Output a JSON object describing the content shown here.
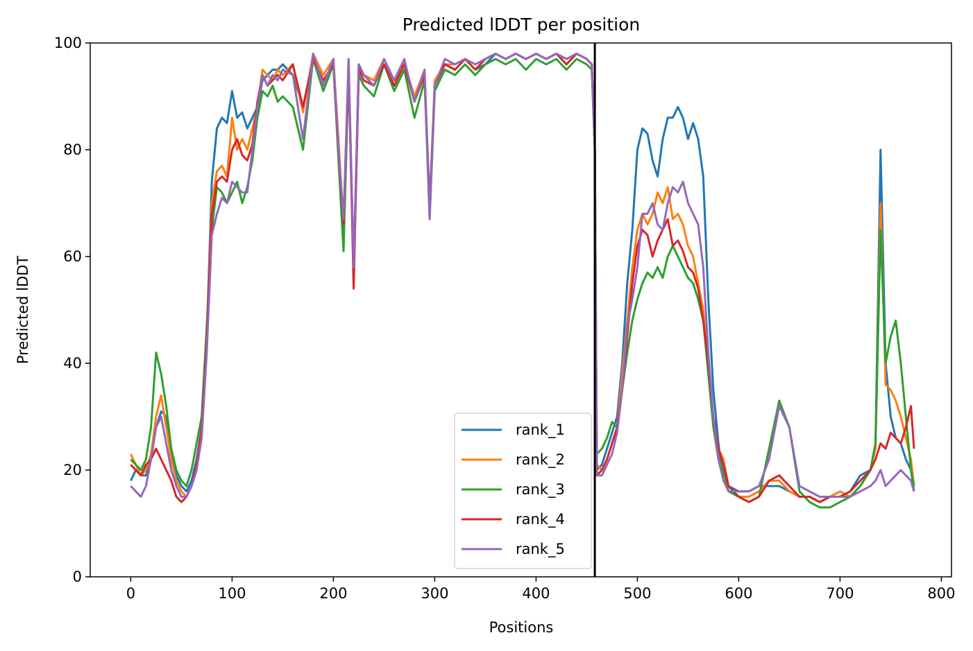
{
  "chart_data": {
    "type": "line",
    "title": "Predicted lDDT per position",
    "xlabel": "Positions",
    "ylabel": "Predicted lDDT",
    "xlim": [
      -40,
      810
    ],
    "ylim": [
      0,
      100
    ],
    "xticks": [
      0,
      100,
      200,
      300,
      400,
      500,
      600,
      700,
      800
    ],
    "yticks": [
      0,
      20,
      40,
      60,
      80,
      100
    ],
    "grid": false,
    "legend_position": "lower-center",
    "chain_boundary_x": 458,
    "series": [
      {
        "name": "rank_1",
        "color": "#1f77b4",
        "x": [
          0,
          5,
          10,
          15,
          20,
          25,
          30,
          35,
          40,
          45,
          50,
          55,
          60,
          65,
          70,
          75,
          80,
          85,
          90,
          95,
          100,
          105,
          110,
          115,
          120,
          125,
          130,
          135,
          140,
          145,
          150,
          160,
          170,
          180,
          190,
          200,
          205,
          210,
          215,
          220,
          225,
          230,
          240,
          250,
          260,
          270,
          280,
          290,
          295,
          300,
          310,
          320,
          330,
          340,
          350,
          360,
          370,
          380,
          390,
          400,
          410,
          420,
          430,
          440,
          450,
          455,
          458,
          460,
          465,
          470,
          475,
          480,
          485,
          490,
          495,
          500,
          505,
          510,
          515,
          520,
          525,
          530,
          535,
          540,
          545,
          550,
          555,
          560,
          565,
          570,
          575,
          580,
          585,
          590,
          600,
          610,
          620,
          630,
          640,
          650,
          660,
          670,
          680,
          690,
          700,
          710,
          720,
          730,
          735,
          740,
          745,
          750,
          755,
          760,
          765,
          770,
          773
        ],
        "y": [
          18,
          20,
          19,
          19,
          22,
          28,
          31,
          30,
          24,
          19,
          17,
          16,
          18,
          22,
          28,
          45,
          74,
          84,
          86,
          85,
          91,
          86,
          87,
          84,
          86,
          88,
          93,
          94,
          95,
          95,
          96,
          94,
          88,
          97,
          93,
          96,
          80,
          65,
          96,
          58,
          95,
          94,
          93,
          96,
          92,
          96,
          90,
          94,
          70,
          92,
          96,
          95,
          97,
          95,
          96,
          98,
          97,
          98,
          97,
          98,
          97,
          98,
          96,
          98,
          97,
          96,
          80,
          20,
          21,
          24,
          27,
          30,
          40,
          55,
          65,
          80,
          84,
          83,
          78,
          75,
          82,
          86,
          86,
          88,
          86,
          82,
          85,
          82,
          75,
          52,
          35,
          25,
          18,
          17,
          16,
          16,
          17,
          17,
          17,
          16,
          15,
          15,
          14,
          15,
          15,
          16,
          19,
          20,
          25,
          80,
          40,
          30,
          26,
          25,
          22,
          20,
          16
        ]
      },
      {
        "name": "rank_2",
        "color": "#ff7f0e",
        "x": [
          0,
          5,
          10,
          15,
          20,
          25,
          30,
          35,
          40,
          45,
          50,
          55,
          60,
          65,
          70,
          75,
          80,
          85,
          90,
          95,
          100,
          105,
          110,
          115,
          120,
          125,
          130,
          135,
          140,
          145,
          150,
          160,
          170,
          180,
          190,
          200,
          205,
          210,
          215,
          220,
          225,
          230,
          240,
          250,
          260,
          270,
          280,
          290,
          295,
          300,
          310,
          320,
          330,
          340,
          350,
          360,
          370,
          380,
          390,
          400,
          410,
          420,
          430,
          440,
          450,
          455,
          458,
          460,
          465,
          470,
          475,
          480,
          485,
          490,
          495,
          500,
          505,
          510,
          515,
          520,
          525,
          530,
          535,
          540,
          545,
          550,
          555,
          560,
          565,
          570,
          575,
          580,
          585,
          590,
          600,
          610,
          620,
          630,
          640,
          650,
          660,
          670,
          680,
          690,
          700,
          710,
          720,
          730,
          735,
          740,
          745,
          750,
          755,
          760,
          765,
          770,
          773
        ],
        "y": [
          23,
          21,
          19,
          20,
          23,
          30,
          34,
          28,
          22,
          18,
          16,
          15,
          17,
          20,
          28,
          45,
          70,
          76,
          77,
          75,
          86,
          80,
          82,
          80,
          84,
          88,
          95,
          94,
          93,
          95,
          94,
          96,
          87,
          98,
          94,
          97,
          82,
          66,
          97,
          55,
          96,
          94,
          93,
          97,
          93,
          96,
          90,
          95,
          68,
          93,
          96,
          96,
          97,
          95,
          97,
          98,
          97,
          98,
          97,
          98,
          97,
          98,
          97,
          98,
          97,
          96,
          80,
          21,
          20,
          22,
          25,
          28,
          38,
          48,
          58,
          65,
          68,
          66,
          68,
          72,
          70,
          73,
          67,
          68,
          66,
          62,
          60,
          55,
          50,
          40,
          30,
          24,
          22,
          17,
          15,
          15,
          16,
          18,
          18,
          16,
          15,
          15,
          14,
          15,
          16,
          15,
          17,
          20,
          24,
          70,
          36,
          35,
          33,
          30,
          26,
          22,
          17
        ]
      },
      {
        "name": "rank_3",
        "color": "#2ca02c",
        "x": [
          0,
          5,
          10,
          15,
          20,
          25,
          30,
          35,
          40,
          45,
          50,
          55,
          60,
          65,
          70,
          75,
          80,
          85,
          90,
          95,
          100,
          105,
          110,
          115,
          120,
          125,
          130,
          135,
          140,
          145,
          150,
          160,
          170,
          180,
          190,
          200,
          205,
          210,
          215,
          220,
          225,
          230,
          240,
          250,
          260,
          270,
          280,
          290,
          295,
          300,
          310,
          320,
          330,
          340,
          350,
          360,
          370,
          380,
          390,
          400,
          410,
          420,
          430,
          440,
          450,
          455,
          458,
          460,
          465,
          470,
          475,
          480,
          485,
          490,
          495,
          500,
          505,
          510,
          515,
          520,
          525,
          530,
          535,
          540,
          545,
          550,
          555,
          560,
          565,
          570,
          575,
          580,
          585,
          590,
          600,
          610,
          620,
          630,
          640,
          650,
          660,
          670,
          680,
          690,
          700,
          710,
          720,
          730,
          735,
          740,
          745,
          750,
          755,
          760,
          765,
          770,
          773
        ],
        "y": [
          22,
          21,
          20,
          22,
          28,
          42,
          38,
          32,
          24,
          20,
          18,
          17,
          20,
          25,
          30,
          47,
          65,
          73,
          72,
          70,
          72,
          74,
          70,
          73,
          78,
          86,
          91,
          90,
          92,
          89,
          90,
          88,
          80,
          97,
          91,
          96,
          78,
          61,
          95,
          57,
          94,
          92,
          90,
          96,
          91,
          95,
          86,
          93,
          67,
          91,
          95,
          94,
          96,
          94,
          96,
          97,
          96,
          97,
          95,
          97,
          96,
          97,
          95,
          97,
          96,
          95,
          80,
          23,
          24,
          26,
          29,
          28,
          35,
          42,
          48,
          52,
          55,
          57,
          56,
          58,
          56,
          60,
          62,
          60,
          58,
          56,
          55,
          52,
          48,
          38,
          28,
          22,
          20,
          16,
          15,
          14,
          15,
          24,
          33,
          28,
          16,
          14,
          13,
          13,
          14,
          15,
          17,
          20,
          25,
          65,
          40,
          45,
          48,
          40,
          30,
          20,
          17
        ]
      },
      {
        "name": "rank_4",
        "color": "#d62728",
        "x": [
          0,
          5,
          10,
          15,
          20,
          25,
          30,
          35,
          40,
          45,
          50,
          55,
          60,
          65,
          70,
          75,
          80,
          85,
          90,
          95,
          100,
          105,
          110,
          115,
          120,
          125,
          130,
          135,
          140,
          145,
          150,
          160,
          170,
          180,
          190,
          200,
          205,
          210,
          215,
          220,
          225,
          230,
          240,
          250,
          260,
          270,
          280,
          290,
          295,
          300,
          310,
          320,
          330,
          340,
          350,
          360,
          370,
          380,
          390,
          400,
          410,
          420,
          430,
          440,
          450,
          455,
          458,
          460,
          465,
          470,
          475,
          480,
          485,
          490,
          495,
          500,
          505,
          510,
          515,
          520,
          525,
          530,
          535,
          540,
          545,
          550,
          555,
          560,
          565,
          570,
          575,
          580,
          585,
          590,
          600,
          610,
          620,
          630,
          640,
          650,
          660,
          670,
          680,
          690,
          700,
          710,
          720,
          730,
          735,
          740,
          745,
          750,
          755,
          760,
          765,
          770,
          773
        ],
        "y": [
          21,
          20,
          19,
          21,
          22,
          24,
          22,
          20,
          18,
          15,
          14,
          15,
          17,
          21,
          28,
          44,
          68,
          74,
          75,
          74,
          80,
          82,
          79,
          78,
          81,
          89,
          94,
          92,
          93,
          94,
          93,
          96,
          88,
          97,
          93,
          96,
          80,
          66,
          96,
          54,
          95,
          93,
          92,
          96,
          92,
          96,
          89,
          94,
          68,
          92,
          96,
          95,
          97,
          95,
          97,
          98,
          97,
          98,
          97,
          98,
          97,
          98,
          96,
          98,
          97,
          96,
          80,
          19,
          20,
          22,
          25,
          28,
          35,
          45,
          55,
          62,
          65,
          64,
          60,
          63,
          65,
          67,
          62,
          63,
          61,
          58,
          57,
          54,
          48,
          40,
          30,
          24,
          21,
          17,
          15,
          14,
          15,
          18,
          19,
          17,
          15,
          15,
          14,
          15,
          15,
          16,
          18,
          20,
          22,
          25,
          24,
          27,
          26,
          25,
          28,
          32,
          24
        ]
      },
      {
        "name": "rank_5",
        "color": "#9467bd",
        "x": [
          0,
          5,
          10,
          15,
          20,
          25,
          30,
          35,
          40,
          45,
          50,
          55,
          60,
          65,
          70,
          75,
          80,
          85,
          90,
          95,
          100,
          105,
          110,
          115,
          120,
          125,
          130,
          135,
          140,
          145,
          150,
          160,
          170,
          180,
          190,
          200,
          205,
          210,
          215,
          220,
          225,
          230,
          240,
          250,
          260,
          270,
          280,
          290,
          295,
          300,
          310,
          320,
          330,
          340,
          350,
          360,
          370,
          380,
          390,
          400,
          410,
          420,
          430,
          440,
          450,
          455,
          458,
          460,
          465,
          470,
          475,
          480,
          485,
          490,
          495,
          500,
          505,
          510,
          515,
          520,
          525,
          530,
          535,
          540,
          545,
          550,
          555,
          560,
          565,
          570,
          575,
          580,
          585,
          590,
          600,
          610,
          620,
          630,
          640,
          650,
          660,
          670,
          680,
          690,
          700,
          710,
          720,
          730,
          735,
          740,
          745,
          750,
          755,
          760,
          765,
          770,
          773
        ],
        "y": [
          17,
          16,
          15,
          17,
          22,
          28,
          30,
          25,
          20,
          17,
          15,
          15,
          17,
          20,
          26,
          42,
          64,
          68,
          71,
          70,
          74,
          73,
          72,
          72,
          80,
          88,
          94,
          92,
          94,
          93,
          95,
          94,
          82,
          98,
          92,
          97,
          80,
          67,
          97,
          58,
          96,
          94,
          92,
          97,
          93,
          97,
          89,
          95,
          67,
          92,
          97,
          96,
          97,
          96,
          97,
          98,
          97,
          98,
          97,
          98,
          97,
          98,
          97,
          98,
          97,
          96,
          80,
          19,
          19,
          21,
          23,
          27,
          35,
          47,
          52,
          58,
          68,
          68,
          70,
          66,
          65,
          70,
          73,
          72,
          74,
          70,
          68,
          66,
          58,
          42,
          30,
          22,
          18,
          16,
          16,
          16,
          17,
          22,
          32,
          28,
          17,
          16,
          15,
          15,
          15,
          15,
          16,
          17,
          18,
          20,
          17,
          18,
          19,
          20,
          19,
          18,
          16
        ]
      }
    ]
  }
}
